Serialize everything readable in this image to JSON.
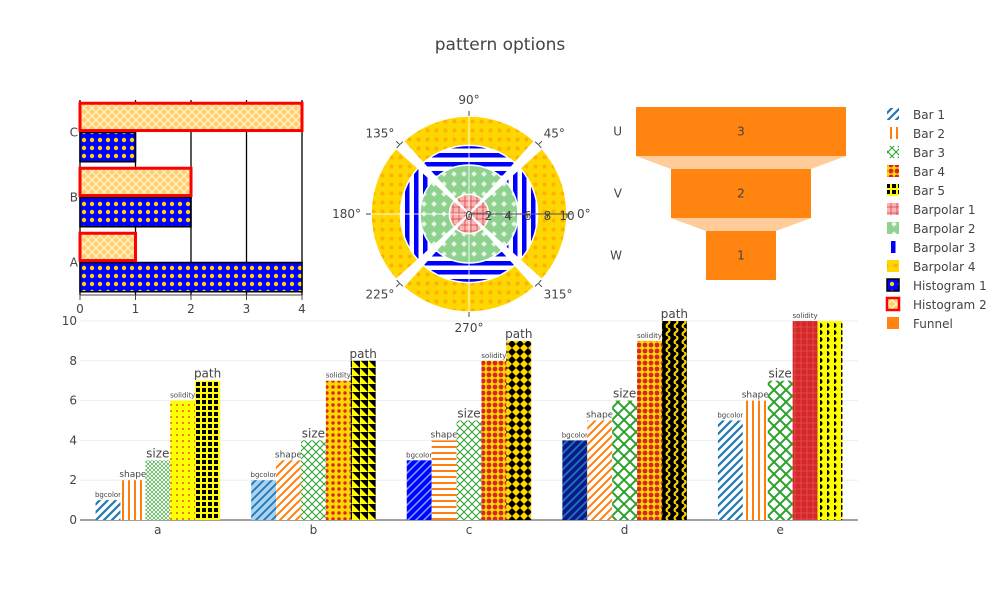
{
  "title": "pattern options",
  "colors": {
    "blue": "#0000ff",
    "yellow": "#ffd700",
    "red": "#ff0000",
    "orange": "#ff7f0e",
    "green": "#2ca02c",
    "steel": "#1f77b4",
    "funnel": "#ff8410",
    "funnel_connector": "#ffcc9a",
    "pink": "#f7b6b6"
  },
  "chart_data": [
    {
      "id": "histograms",
      "type": "bar",
      "orientation": "horizontal",
      "categories": [
        "A",
        "B",
        "C"
      ],
      "xlim": [
        0,
        4
      ],
      "x_ticks": [
        "0",
        "1",
        "2",
        "3",
        "4"
      ],
      "series": [
        {
          "name": "Histogram 1",
          "values": [
            4,
            2,
            1
          ]
        },
        {
          "name": "Histogram 2",
          "values": [
            1,
            2,
            4
          ]
        }
      ]
    },
    {
      "id": "barpolar",
      "type": "barpolar",
      "angular_ticks": [
        "0°",
        "45°",
        "90°",
        "135°",
        "180°",
        "225°",
        "270°",
        "315°"
      ],
      "radial_ticks": [
        "0",
        "2",
        "4",
        "6",
        "8",
        "10"
      ],
      "rlim": [
        0,
        10
      ],
      "series": [
        {
          "name": "Barpolar 1",
          "r": 2,
          "sectors": [
            0,
            90,
            180,
            270
          ]
        },
        {
          "name": "Barpolar 2",
          "r": 5,
          "sectors": [
            0,
            90,
            180,
            270
          ]
        },
        {
          "name": "Barpolar 3",
          "r": 7,
          "sectors": [
            0,
            90,
            180,
            270
          ]
        },
        {
          "name": "Barpolar 4",
          "r": 10,
          "sectors": [
            0,
            90,
            180,
            270
          ]
        }
      ]
    },
    {
      "id": "funnel",
      "type": "funnel",
      "categories": [
        "U",
        "V",
        "W"
      ],
      "values": [
        3,
        2,
        1
      ],
      "labels": [
        "3",
        "2",
        "1"
      ],
      "series_name": "Funnel"
    },
    {
      "id": "bars",
      "type": "bar",
      "categories": [
        "a",
        "b",
        "c",
        "d",
        "e"
      ],
      "ylim": [
        0,
        10
      ],
      "y_ticks": [
        "0",
        "2",
        "4",
        "6",
        "8",
        "10"
      ],
      "series": [
        {
          "name": "Bar 1",
          "label": "bgcolor",
          "values": [
            1,
            2,
            3,
            4,
            5
          ]
        },
        {
          "name": "Bar 2",
          "label": "shape",
          "values": [
            2,
            3,
            4,
            5,
            6
          ]
        },
        {
          "name": "Bar 3",
          "label": "size",
          "values": [
            3,
            4,
            5,
            6,
            7
          ]
        },
        {
          "name": "Bar 4",
          "label": "solidity",
          "values": [
            6,
            7,
            8,
            9,
            10
          ]
        },
        {
          "name": "Bar 5",
          "label": "path",
          "values": [
            7,
            8,
            9,
            10,
            11
          ]
        }
      ]
    }
  ],
  "legend": {
    "placement": "right",
    "items": [
      "Bar 1",
      "Bar 2",
      "Bar 3",
      "Bar 4",
      "Bar 5",
      "Barpolar 1",
      "Barpolar 2",
      "Barpolar 3",
      "Barpolar 4",
      "Histogram 1",
      "Histogram 2",
      "Funnel"
    ]
  }
}
